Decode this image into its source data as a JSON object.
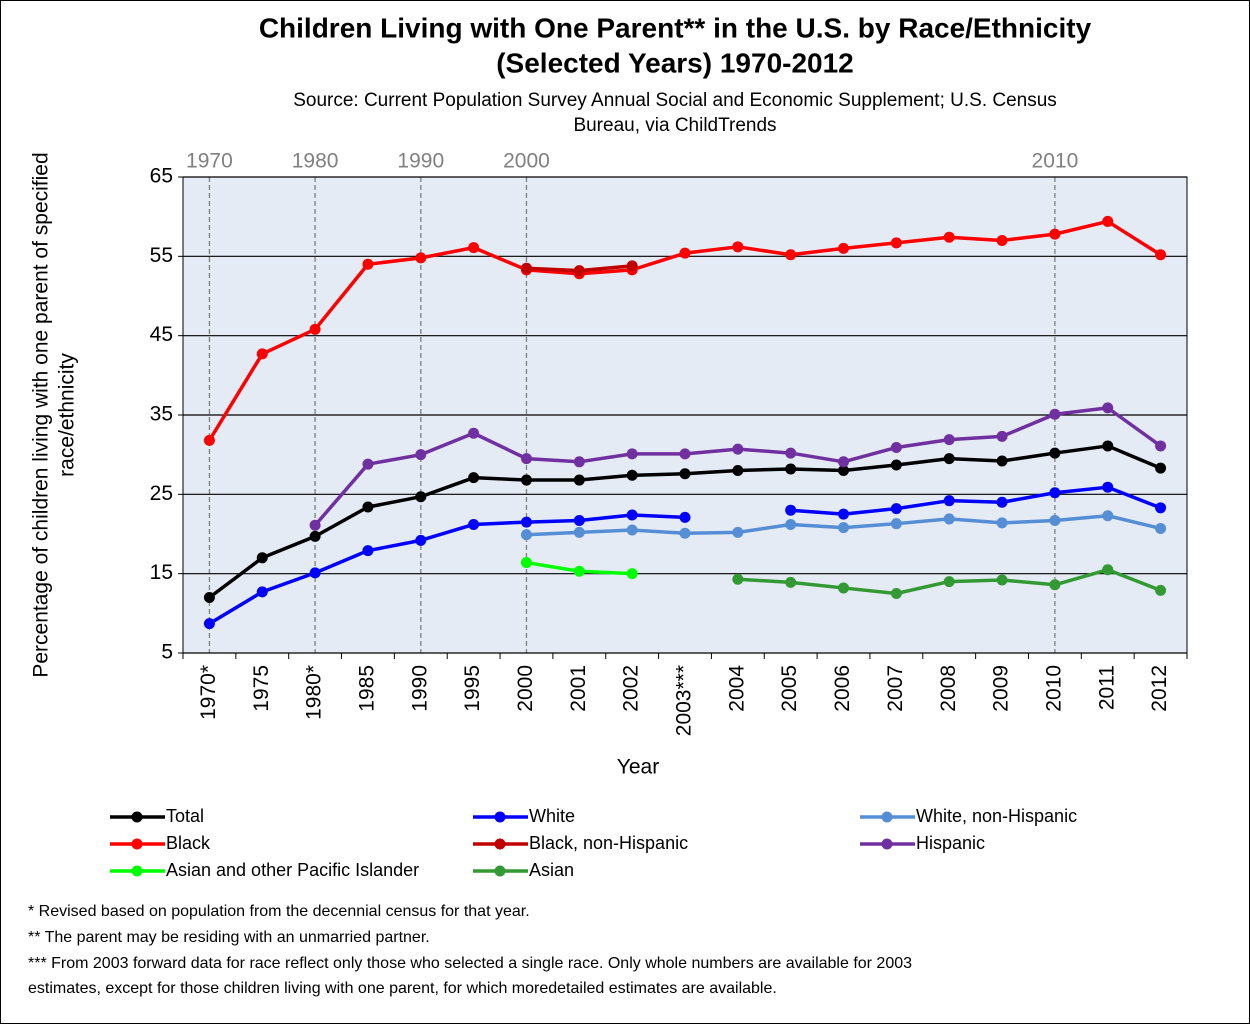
{
  "chart_data": {
    "type": "line",
    "title": [
      "Children Living with One Parent** in the U.S. by Race/Ethnicity",
      "(Selected Years) 1970-2012"
    ],
    "subtitle": [
      "Source: Current Population Survey Annual Social and Economic Supplement; U.S. Census",
      "Bureau, via ChildTrends"
    ],
    "y_label": [
      "Percentage of children living with one parent of specified",
      "race/ethnicity"
    ],
    "x_label": "Year",
    "categories": [
      "1970*",
      "1975",
      "1980*",
      "1985",
      "1990",
      "1995",
      "2000",
      "2001",
      "2002",
      "2003***",
      "2004",
      "2005",
      "2006",
      "2007",
      "2008",
      "2009",
      "2010",
      "2011",
      "2012"
    ],
    "decade_labels": [
      "1970",
      null,
      "1980",
      null,
      "1990",
      null,
      "2000",
      null,
      null,
      null,
      null,
      null,
      null,
      null,
      null,
      null,
      "2010",
      null,
      null
    ],
    "ylim": [
      5,
      65
    ],
    "yticks": [
      5,
      15,
      25,
      35,
      45,
      55,
      65
    ],
    "grid": true,
    "series": [
      {
        "name": "Total",
        "color": "#000000",
        "values": [
          12,
          17,
          19.7,
          23.4,
          24.7,
          27.1,
          26.8,
          26.8,
          27.4,
          27.6,
          28.0,
          28.2,
          28.0,
          28.7,
          29.5,
          29.2,
          30.2,
          31.1,
          28.3
        ]
      },
      {
        "name": "White",
        "color": "#0000ff",
        "values": [
          8.7,
          12.7,
          15.1,
          17.9,
          19.2,
          21.2,
          21.5,
          21.7,
          22.4,
          22.1,
          null,
          23.0,
          22.5,
          23.2,
          24.2,
          24.0,
          25.2,
          25.9,
          23.3
        ]
      },
      {
        "name": "White, non-Hispanic",
        "color": "#558ed5",
        "values": [
          null,
          null,
          null,
          null,
          null,
          null,
          19.9,
          20.2,
          20.5,
          20.1,
          20.2,
          21.2,
          20.8,
          21.3,
          21.9,
          21.4,
          21.7,
          22.3,
          20.7
        ]
      },
      {
        "name": "Black",
        "color": "#ff0000",
        "values": [
          31.8,
          42.7,
          45.8,
          54.0,
          54.8,
          56.1,
          53.3,
          52.8,
          53.3,
          55.4,
          56.2,
          55.2,
          56.0,
          56.7,
          57.4,
          57.0,
          57.8,
          59.4,
          55.2
        ]
      },
      {
        "name": "Black, non-Hispanic",
        "color": "#c00000",
        "values": [
          null,
          null,
          null,
          null,
          null,
          null,
          53.5,
          53.2,
          53.8,
          null,
          null,
          null,
          null,
          null,
          null,
          null,
          null,
          null,
          null
        ]
      },
      {
        "name": "Hispanic",
        "color": "#7030a0",
        "values": [
          null,
          null,
          21.1,
          28.8,
          30.0,
          32.7,
          29.5,
          29.1,
          30.1,
          30.1,
          30.7,
          30.2,
          29.1,
          30.9,
          31.9,
          32.3,
          35.1,
          35.9,
          31.1
        ]
      },
      {
        "name": "Asian and other Pacific Islander",
        "color": "#00ff00",
        "values": [
          null,
          null,
          null,
          null,
          null,
          null,
          16.4,
          15.3,
          15.0,
          null,
          null,
          null,
          null,
          null,
          null,
          null,
          null,
          null,
          null
        ]
      },
      {
        "name": "Asian",
        "color": "#339933",
        "values": [
          null,
          null,
          null,
          null,
          null,
          null,
          null,
          null,
          null,
          null,
          14.3,
          13.9,
          13.2,
          12.5,
          14.0,
          14.2,
          13.6,
          15.5,
          12.9
        ]
      }
    ],
    "footnotes": [
      "* Revised based on population from the decennial census for that year.",
      "** The parent may be residing with an unmarried partner.",
      "*** From 2003 forward data for race reflect only those who selected a single race. Only whole numbers are available for 2003",
      "estimates, except  for those children living with one parent, for which moredetailed estimates are available."
    ]
  }
}
